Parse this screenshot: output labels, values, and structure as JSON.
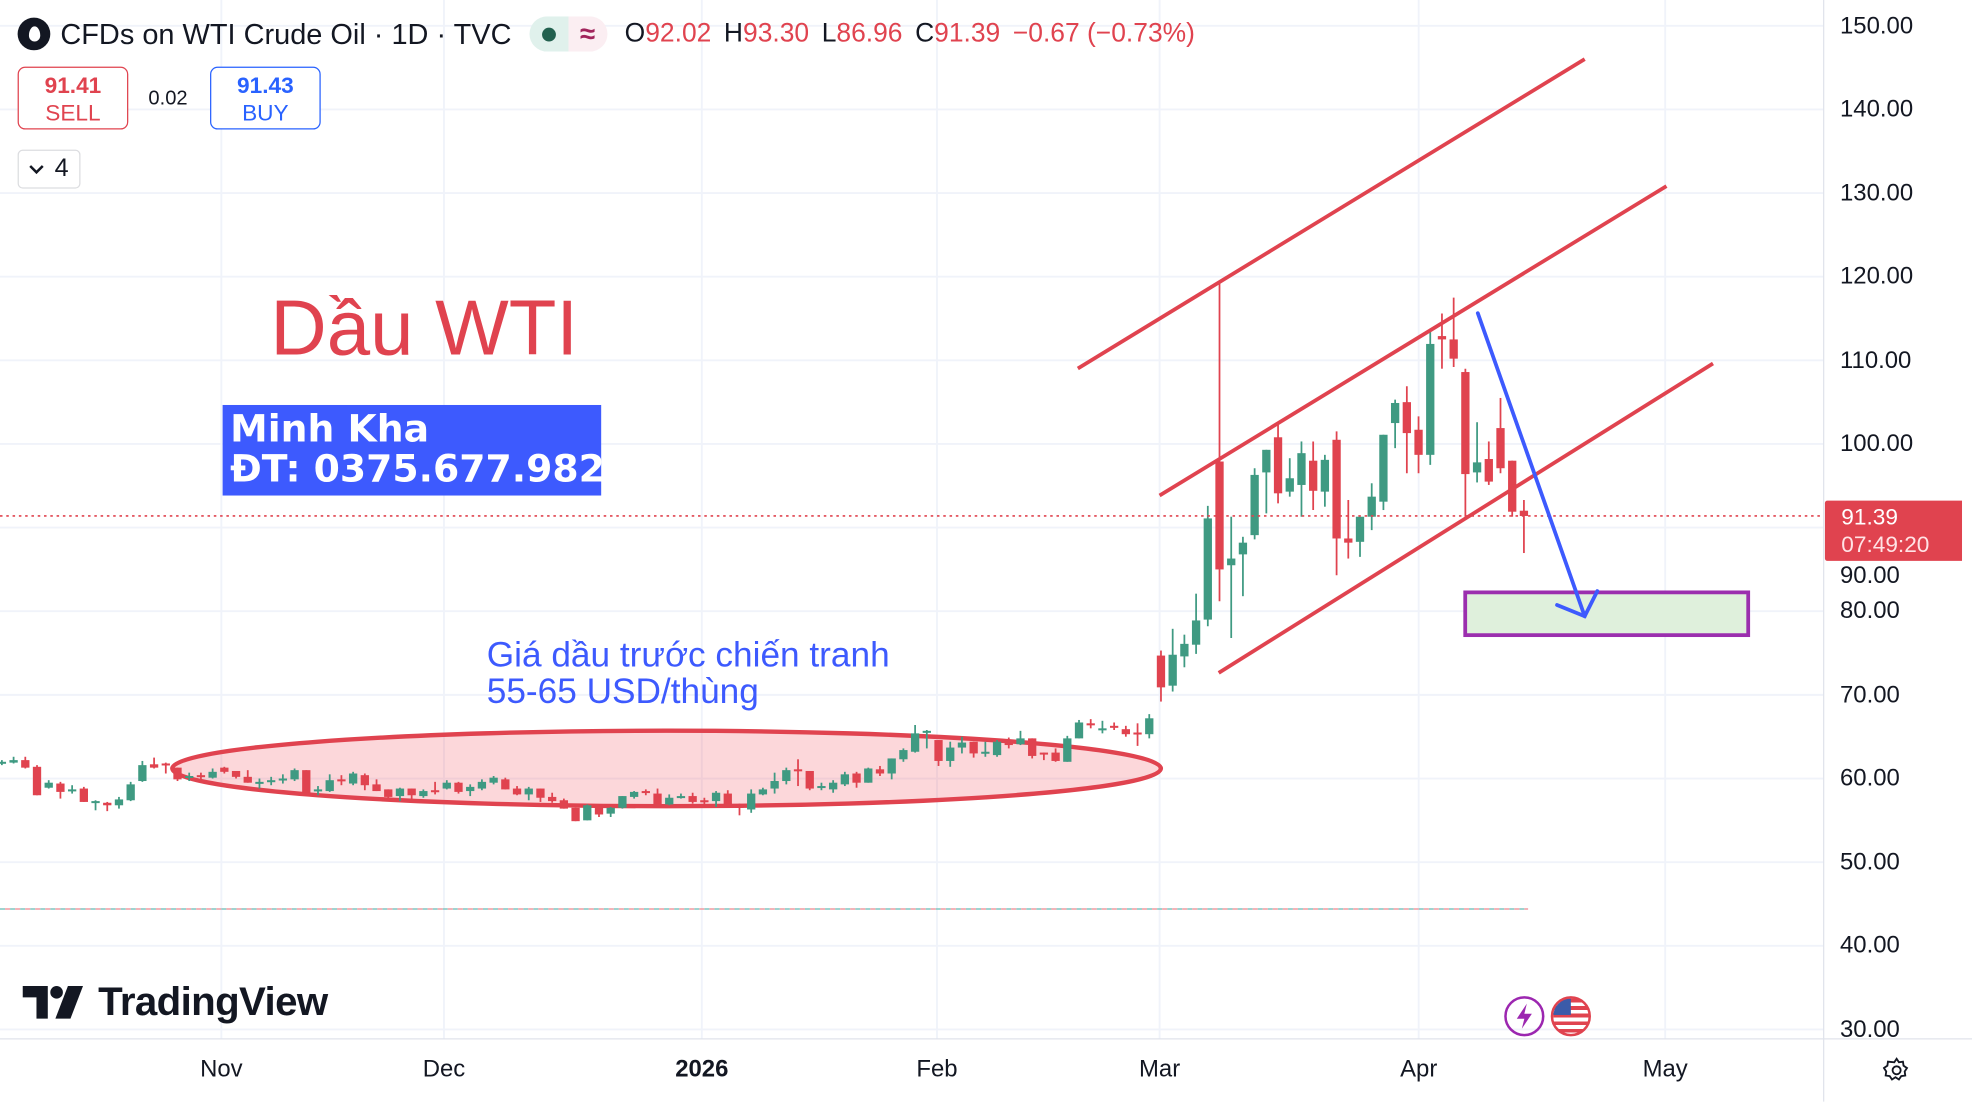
{
  "header": {
    "symbol_title": "CFDs on WTI Crude Oil · 1D · TVC",
    "ohlc": [
      {
        "key": "O",
        "value": "92.02"
      },
      {
        "key": "H",
        "value": "93.30"
      },
      {
        "key": "L",
        "value": "86.96"
      },
      {
        "key": "C",
        "value": "91.39"
      }
    ],
    "change": "−0.67 (−0.73%)",
    "status_icons": [
      "market-open-dot-icon",
      "approx-icon"
    ]
  },
  "trade": {
    "sell_price": "91.41",
    "sell_label": "SELL",
    "spread": "0.02",
    "buy_price": "91.43",
    "buy_label": "BUY"
  },
  "indicators_toggle": {
    "count": "4",
    "icon": "chevron-down-icon"
  },
  "annotations": {
    "title": "Dầu WTI",
    "contact_name": "Minh Kha",
    "contact_phone": "ĐT: 0375.677.982",
    "note_line1": "Giá dầu trước chiến tranh",
    "note_line2": "55-65 USD/thùng"
  },
  "last_price": {
    "value": "91.39",
    "countdown": "07:49:20"
  },
  "branding": {
    "logo_text": "TradingView"
  },
  "bottom_icons": [
    "lightning-icon",
    "us-flag-icon",
    "settings-gear-icon"
  ],
  "colors": {
    "up": "#3f9a82",
    "down": "#e0434f",
    "channel": "#e0434f",
    "arrow": "#3d5afe",
    "target_box": "#9b2fae",
    "target_fill": "#dff0dc",
    "note_text": "#3d5afe"
  },
  "chart_data": {
    "type": "candlestick",
    "title": "CFDs on WTI Crude Oil · 1D · TVC",
    "y_ticks": [
      "150.00",
      "140.00",
      "130.00",
      "120.00",
      "110.00",
      "100.00",
      "90.00",
      "80.00",
      "70.00",
      "60.00",
      "50.00",
      "40.00",
      "30.00"
    ],
    "ylim": [
      30,
      150
    ],
    "x_ticks": [
      "Nov",
      "Dec",
      "2026",
      "Feb",
      "Mar",
      "Apr",
      "May"
    ],
    "grid": true,
    "ohlc_fields": [
      "open",
      "high",
      "low",
      "close"
    ],
    "candles": [
      [
        61.8,
        62.2,
        61.6,
        62.0
      ],
      [
        61.9,
        62.6,
        61.8,
        62.2
      ],
      [
        62.2,
        62.6,
        61.2,
        61.3
      ],
      [
        61.4,
        61.6,
        58.0,
        58.0
      ],
      [
        58.9,
        59.8,
        58.8,
        59.5
      ],
      [
        59.4,
        59.6,
        57.6,
        58.4
      ],
      [
        58.6,
        59.2,
        58.2,
        58.7
      ],
      [
        58.8,
        59.0,
        57.2,
        57.2
      ],
      [
        57.2,
        57.4,
        56.2,
        57.3
      ],
      [
        57.1,
        57.2,
        56.1,
        56.8
      ],
      [
        56.8,
        57.8,
        56.4,
        57.5
      ],
      [
        57.4,
        59.6,
        57.3,
        59.3
      ],
      [
        59.7,
        62.1,
        59.6,
        61.6
      ],
      [
        61.7,
        62.5,
        61.2,
        61.3
      ],
      [
        61.8,
        61.9,
        60.6,
        61.7
      ],
      [
        61.3,
        61.3,
        59.7,
        59.9
      ],
      [
        60.2,
        60.7,
        59.7,
        60.3
      ],
      [
        60.4,
        60.7,
        59.6,
        60.3
      ],
      [
        60.1,
        61.2,
        60.0,
        60.8
      ],
      [
        61.3,
        61.4,
        60.6,
        60.8
      ],
      [
        60.9,
        60.9,
        60.0,
        60.2
      ],
      [
        60.2,
        61.0,
        59.5,
        59.5
      ],
      [
        59.6,
        60.0,
        58.8,
        59.6
      ],
      [
        59.7,
        60.2,
        59.2,
        59.8
      ],
      [
        59.9,
        60.5,
        59.4,
        60.0
      ],
      [
        59.9,
        61.2,
        59.7,
        61.0
      ],
      [
        61.0,
        61.0,
        58.3,
        58.3
      ],
      [
        58.5,
        59.1,
        58.0,
        58.7
      ],
      [
        58.5,
        60.5,
        58.4,
        59.8
      ],
      [
        59.9,
        60.4,
        59.2,
        59.8
      ],
      [
        59.4,
        60.8,
        59.2,
        60.6
      ],
      [
        60.4,
        60.6,
        58.6,
        59.2
      ],
      [
        59.3,
        59.9,
        58.5,
        58.5
      ],
      [
        58.7,
        58.7,
        57.4,
        57.8
      ],
      [
        57.9,
        58.9,
        57.3,
        58.8
      ],
      [
        58.8,
        58.8,
        57.2,
        58.0
      ],
      [
        57.9,
        58.7,
        57.7,
        58.5
      ],
      [
        58.6,
        59.6,
        58.1,
        58.5
      ],
      [
        58.8,
        59.8,
        58.7,
        59.5
      ],
      [
        59.5,
        59.6,
        58.2,
        58.4
      ],
      [
        58.5,
        59.3,
        57.9,
        59.0
      ],
      [
        58.8,
        59.9,
        58.6,
        59.6
      ],
      [
        59.5,
        60.3,
        59.3,
        60.1
      ],
      [
        59.9,
        60.1,
        58.7,
        58.7
      ],
      [
        58.8,
        59.1,
        58.0,
        58.1
      ],
      [
        58.1,
        59.0,
        57.4,
        58.8
      ],
      [
        58.8,
        58.8,
        57.2,
        57.7
      ],
      [
        57.8,
        58.3,
        57.1,
        57.3
      ],
      [
        57.4,
        57.6,
        56.4,
        56.4
      ],
      [
        56.5,
        56.5,
        54.9,
        54.9
      ],
      [
        55.0,
        56.9,
        55.0,
        56.8
      ],
      [
        56.7,
        56.9,
        55.4,
        55.7
      ],
      [
        55.8,
        56.6,
        55.4,
        56.5
      ],
      [
        56.5,
        57.9,
        56.4,
        57.9
      ],
      [
        57.8,
        58.5,
        57.6,
        58.4
      ],
      [
        58.5,
        58.7,
        58.0,
        58.4
      ],
      [
        58.2,
        58.8,
        56.7,
        56.7
      ],
      [
        56.9,
        58.1,
        56.8,
        57.7
      ],
      [
        57.8,
        58.2,
        57.6,
        57.9
      ],
      [
        57.9,
        58.3,
        57.0,
        57.2
      ],
      [
        57.4,
        57.7,
        56.7,
        57.3
      ],
      [
        57.3,
        58.5,
        56.6,
        58.3
      ],
      [
        58.2,
        58.6,
        56.7,
        56.7
      ],
      [
        56.9,
        57.0,
        55.6,
        56.5
      ],
      [
        56.3,
        58.7,
        55.9,
        58.2
      ],
      [
        58.1,
        58.9,
        58.0,
        58.7
      ],
      [
        58.8,
        60.7,
        58.2,
        59.7
      ],
      [
        59.7,
        61.3,
        59.3,
        61.0
      ],
      [
        61.1,
        62.3,
        59.1,
        61.0
      ],
      [
        60.9,
        60.9,
        58.6,
        58.8
      ],
      [
        59.0,
        59.5,
        58.6,
        59.1
      ],
      [
        58.7,
        59.8,
        58.3,
        59.5
      ],
      [
        59.3,
        60.8,
        59.1,
        60.5
      ],
      [
        60.6,
        60.8,
        58.9,
        59.5
      ],
      [
        59.5,
        61.3,
        59.5,
        61.2
      ],
      [
        61.1,
        61.5,
        60.3,
        60.6
      ],
      [
        60.6,
        62.4,
        59.9,
        62.4
      ],
      [
        62.3,
        63.6,
        62.0,
        63.4
      ],
      [
        63.2,
        66.4,
        63.1,
        65.4
      ],
      [
        65.6,
        65.8,
        63.6,
        65.7
      ],
      [
        64.6,
        64.6,
        61.5,
        62.1
      ],
      [
        62.1,
        64.4,
        61.4,
        63.7
      ],
      [
        63.7,
        65.0,
        63.0,
        64.3
      ],
      [
        64.4,
        64.4,
        62.5,
        63.0
      ],
      [
        63.1,
        64.4,
        62.6,
        63.2
      ],
      [
        62.8,
        64.6,
        62.6,
        64.4
      ],
      [
        64.5,
        64.9,
        63.6,
        64.0
      ],
      [
        64.1,
        65.7,
        64.0,
        64.8
      ],
      [
        64.8,
        64.8,
        62.4,
        62.7
      ],
      [
        63.1,
        63.1,
        62.2,
        63.0
      ],
      [
        63.1,
        63.6,
        62.0,
        62.1
      ],
      [
        62.0,
        65.1,
        62.0,
        64.8
      ],
      [
        64.8,
        67.0,
        64.8,
        66.7
      ],
      [
        66.6,
        67.1,
        66.0,
        66.5
      ],
      [
        65.9,
        66.9,
        65.4,
        66.0
      ],
      [
        66.3,
        66.7,
        65.8,
        66.2
      ],
      [
        65.9,
        66.3,
        65.0,
        65.3
      ],
      [
        65.5,
        66.6,
        63.9,
        65.4
      ],
      [
        65.3,
        67.7,
        64.8,
        67.2
      ],
      [
        74.7,
        75.3,
        69.2,
        70.9
      ],
      [
        71.1,
        77.9,
        70.4,
        74.8
      ],
      [
        74.6,
        77.2,
        73.3,
        76.1
      ],
      [
        76.0,
        82.1,
        74.9,
        78.9
      ],
      [
        79.0,
        92.6,
        78.2,
        91.1
      ],
      [
        97.9,
        119.2,
        81.2,
        85.0
      ],
      [
        85.5,
        91.3,
        76.8,
        86.3
      ],
      [
        86.8,
        88.9,
        81.8,
        88.2
      ],
      [
        89.1,
        97.1,
        88.6,
        96.3
      ],
      [
        96.6,
        99.3,
        91.7,
        99.3
      ],
      [
        100.8,
        102.3,
        92.9,
        94.1
      ],
      [
        94.3,
        98.3,
        93.7,
        95.9
      ],
      [
        95.1,
        100.3,
        91.3,
        98.9
      ],
      [
        98.0,
        100.3,
        92.1,
        94.4
      ],
      [
        94.3,
        98.7,
        92.5,
        98.1
      ],
      [
        100.5,
        101.5,
        84.3,
        88.7
      ],
      [
        88.7,
        93.3,
        86.3,
        88.2
      ],
      [
        88.3,
        91.3,
        86.5,
        91.3
      ],
      [
        91.3,
        95.3,
        89.7,
        93.7
      ],
      [
        93.1,
        101.1,
        92.1,
        101.1
      ],
      [
        102.5,
        105.3,
        99.5,
        104.9
      ],
      [
        105.0,
        106.9,
        96.5,
        101.3
      ],
      [
        101.7,
        103.3,
        96.5,
        98.7
      ],
      [
        98.7,
        113.8,
        97.5,
        111.96
      ],
      [
        112.9,
        115.6,
        109.0,
        112.5
      ],
      [
        112.5,
        117.5,
        109.2,
        110.2
      ],
      [
        108.6,
        109.0,
        91.3,
        96.4
      ],
      [
        96.6,
        102.6,
        95.4,
        97.8
      ],
      [
        98.2,
        100.3,
        95.1,
        95.5
      ],
      [
        101.9,
        105.5,
        96.5,
        97.1
      ],
      [
        98.0,
        98.0,
        91.3,
        91.9
      ],
      [
        92.02,
        93.3,
        86.96,
        91.39
      ]
    ],
    "last_price_line": 91.39,
    "dashed_level": 44.4
  }
}
